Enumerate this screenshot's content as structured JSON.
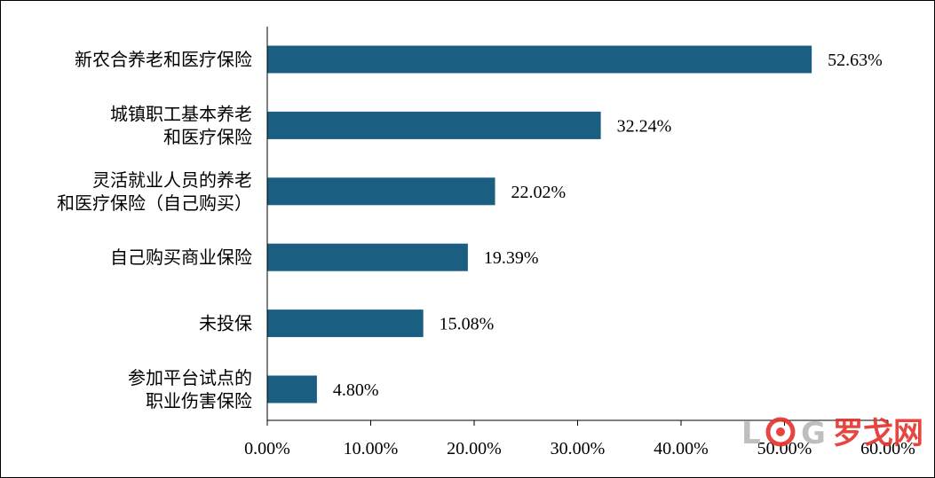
{
  "chart_data": {
    "type": "bar",
    "orientation": "horizontal",
    "categories": [
      [
        "新农合养老和医疗保险"
      ],
      [
        "城镇职工基本养老",
        "和医疗保险"
      ],
      [
        "灵活就业人员的养老",
        "和医疗保险（自己购买）"
      ],
      [
        "自己购买商业保险"
      ],
      [
        "未投保"
      ],
      [
        "参加平台试点的",
        "职业伤害保险"
      ]
    ],
    "values": [
      52.63,
      32.24,
      22.02,
      19.39,
      15.08,
      4.8
    ],
    "value_labels": [
      "52.63%",
      "32.24%",
      "22.02%",
      "19.39%",
      "15.08%",
      "4.80%"
    ],
    "xlim": [
      0,
      60
    ],
    "xticks": [
      0,
      10,
      20,
      30,
      40,
      50,
      60
    ],
    "xtick_labels": [
      "0.00%",
      "10.00%",
      "20.00%",
      "30.00%",
      "40.00%",
      "50.00%",
      "60.00%"
    ],
    "title": "",
    "xlabel": "",
    "ylabel": "",
    "grid": false,
    "bar_color": "#1a5f82"
  },
  "watermark": {
    "letters": [
      "L",
      "G"
    ],
    "cn_text": "罗戈网",
    "accent_color": "#e4322b",
    "gray_color": "#b7b7b7"
  }
}
